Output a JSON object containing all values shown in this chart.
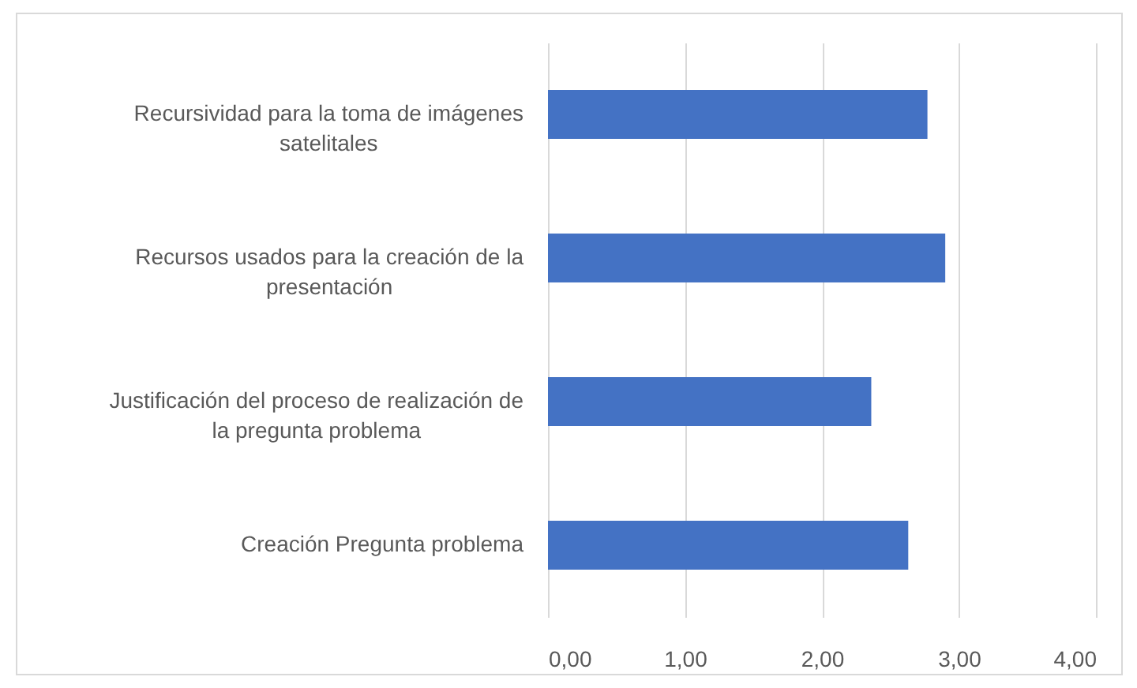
{
  "chart_data": {
    "type": "bar",
    "orientation": "horizontal",
    "categories": [
      "Recursividad para la toma de imágenes satelitales",
      "Recursos usados para la creación de la presentación",
      "Justificación del proceso de realización de la pregunta problema",
      "Creación Pregunta problema"
    ],
    "values": [
      2.77,
      2.9,
      2.36,
      2.63
    ],
    "color": "#4472c4",
    "xlim": [
      0,
      4
    ],
    "xticks": [
      {
        "value": 0,
        "label": "0,00"
      },
      {
        "value": 1,
        "label": "1,00"
      },
      {
        "value": 2,
        "label": "2,00"
      },
      {
        "value": 3,
        "label": "3,00"
      },
      {
        "value": 4,
        "label": "4,00"
      }
    ],
    "grid": "x"
  }
}
